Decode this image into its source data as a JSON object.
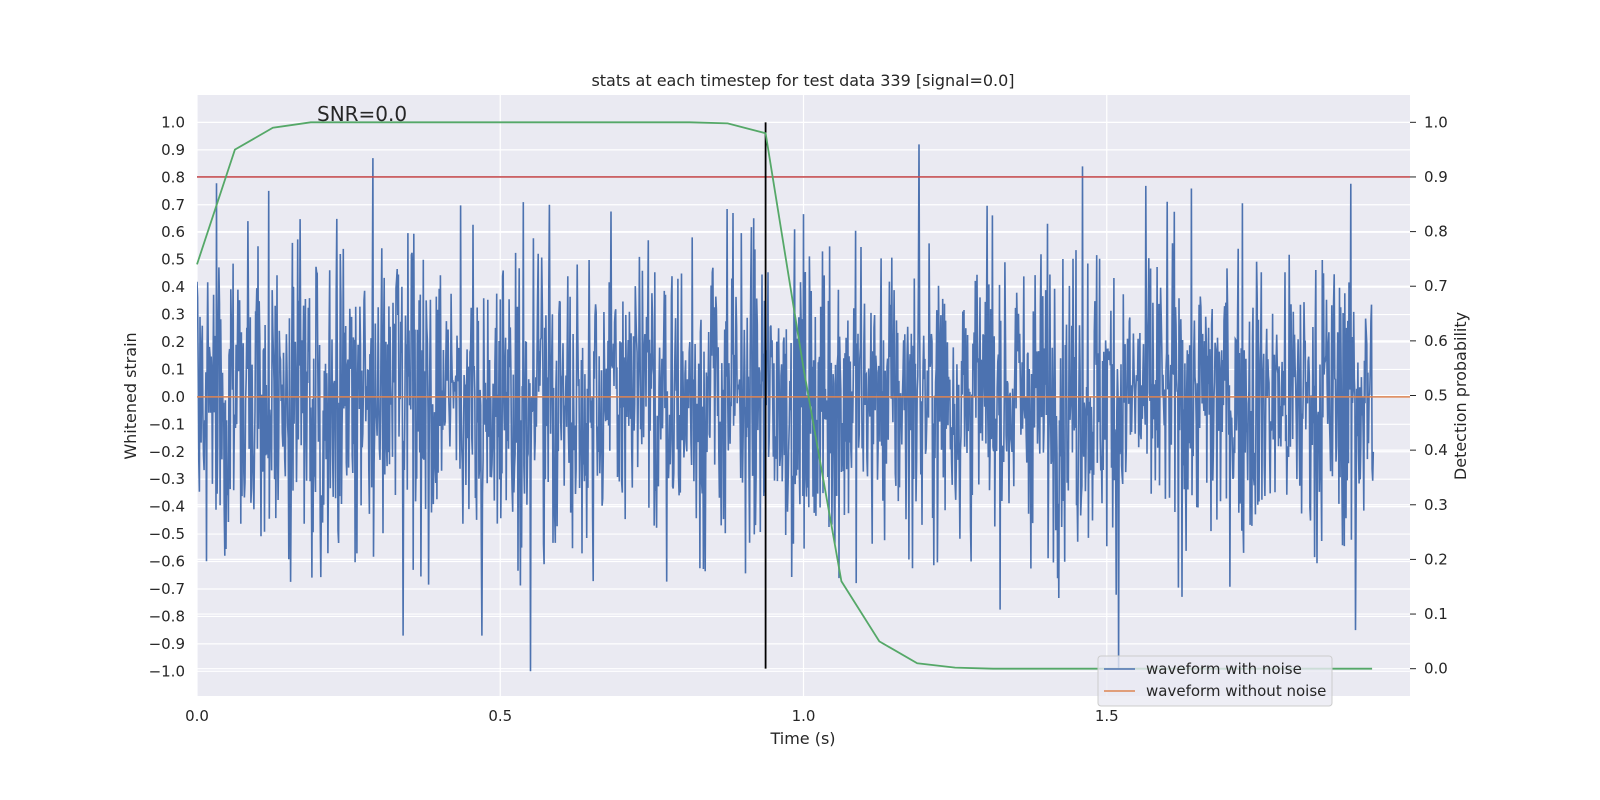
{
  "chart_data": {
    "type": "line",
    "title": "stats at each timestep for test data 339 [signal=0.0]",
    "xlabel": "Time (s)",
    "ylabel": "Whitened strain",
    "y2label": "Detection probability",
    "annotation": "SNR=0.0",
    "xlim": [
      0.0,
      2.0
    ],
    "ylim": [
      -1.09,
      1.1
    ],
    "y2lim": [
      -0.05,
      1.05
    ],
    "x_ticks": [
      "0.0",
      "0.5",
      "1.0",
      "1.5"
    ],
    "y_ticks": [
      "1.0",
      "0.9",
      "0.8",
      "0.7",
      "0.6",
      "0.5",
      "0.4",
      "0.3",
      "0.2",
      "0.1",
      "0.0",
      "-0.1",
      "-0.2",
      "-0.3",
      "-0.4",
      "-0.5",
      "-0.6",
      "-0.7",
      "-0.8",
      "-0.9",
      "-1.0"
    ],
    "y2_ticks": [
      "1.0",
      "0.9",
      "0.8",
      "0.7",
      "0.6",
      "0.5",
      "0.4",
      "0.3",
      "0.2",
      "0.1",
      "0.0"
    ],
    "grid": true,
    "legend_position": "lower-right",
    "colors": {
      "noisy": "#4c72b0",
      "clean": "#dd8452",
      "probability": "#55a868",
      "threshold": "#c44e52",
      "marker": "#000000",
      "axes_bg": "#eaeaf2",
      "grid": "#ffffff"
    },
    "series": [
      {
        "name": "waveform with noise",
        "axis": "left",
        "style": "dense random noise, std approx 0.25, range -1.0 to 0.92",
        "peaks": [
          {
            "x": 0.29,
            "y": 0.87
          },
          {
            "x": 0.55,
            "y": -1.0
          },
          {
            "x": 1.19,
            "y": 0.92
          },
          {
            "x": 1.46,
            "y": 0.84
          },
          {
            "x": 1.52,
            "y": -0.99
          },
          {
            "x": 0.34,
            "y": -0.87
          },
          {
            "x": 0.47,
            "y": -0.87
          },
          {
            "x": 1.91,
            "y": -0.85
          }
        ]
      },
      {
        "name": "waveform without noise",
        "axis": "left",
        "x": [
          0.0,
          2.0
        ],
        "y": [
          0.0,
          0.0
        ]
      },
      {
        "axis": "right",
        "x": [
          0.0,
          0.0625,
          0.125,
          0.1875,
          0.25,
          0.3125,
          0.375,
          0.4375,
          0.5,
          0.5625,
          0.625,
          0.6875,
          0.75,
          0.8125,
          0.875,
          0.9375,
          1.0,
          1.0625,
          1.125,
          1.1875,
          1.25,
          1.3125,
          1.375,
          1.4375,
          1.5,
          1.5625,
          1.625,
          1.6875,
          1.75,
          1.8125,
          1.875,
          1.9375
        ],
        "y": [
          0.74,
          0.95,
          0.99,
          1.0,
          1.0,
          1.0,
          1.0,
          1.0,
          1.0,
          1.0,
          1.0,
          1.0,
          1.0,
          1.0,
          0.998,
          0.98,
          0.55,
          0.16,
          0.05,
          0.01,
          0.002,
          0.0,
          0.0,
          0.0,
          0.0,
          0.0,
          0.0,
          0.0,
          0.0,
          0.0,
          0.0,
          0.0
        ]
      }
    ],
    "threshold_line": {
      "axis": "right",
      "y": 0.9
    },
    "vertical_marker": {
      "x": 0.9375,
      "y2_range": [
        0.0,
        1.0
      ]
    }
  }
}
